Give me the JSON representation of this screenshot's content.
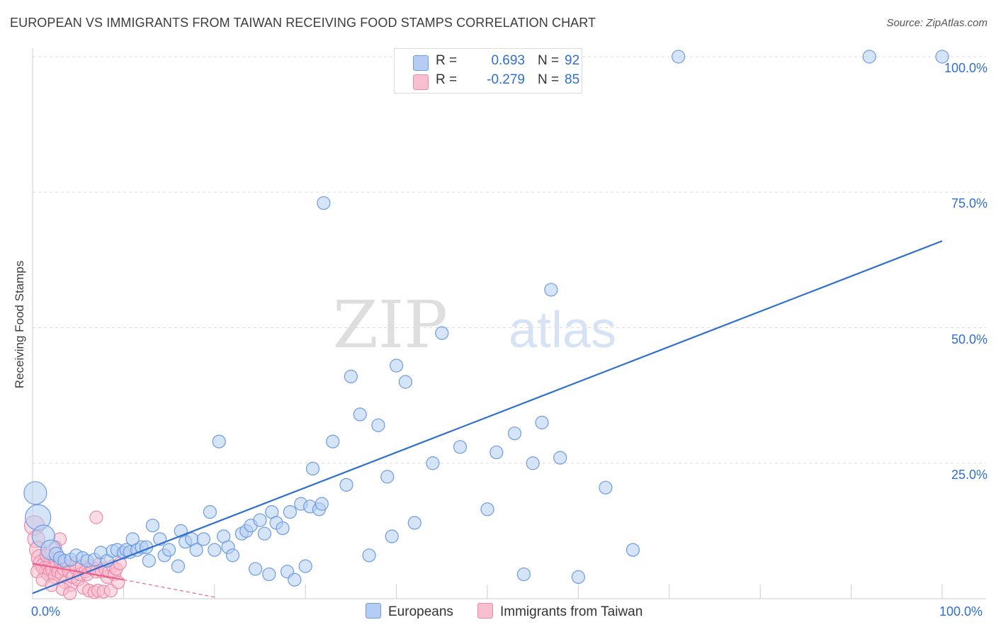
{
  "title": "EUROPEAN VS IMMIGRANTS FROM TAIWAN RECEIVING FOOD STAMPS CORRELATION CHART",
  "source": "Source: ZipAtlas.com",
  "watermark": {
    "zip": "ZIP",
    "atlas": "atlas"
  },
  "colors": {
    "blue": "#2f6fd0",
    "blue_fill": "#b5cdf2",
    "blue_stroke": "#6d9be2",
    "pink": "#e8608c",
    "pink_fill": "#f7bfd0",
    "pink_stroke": "#ec89a8",
    "grid": "#dddddd",
    "axis": "#cccccc"
  },
  "legend_top": [
    {
      "r_label": "R =",
      "r_value": "0.693",
      "n_label": "N =",
      "n_value": "92"
    },
    {
      "r_label": "R =",
      "r_value": "-0.279",
      "n_label": "N =",
      "n_value": "85"
    }
  ],
  "legend_bottom": [
    "Europeans",
    "Immigrants from Taiwan"
  ],
  "chart_data": {
    "type": "scatter",
    "title": "EUROPEAN VS IMMIGRANTS FROM TAIWAN RECEIVING FOOD STAMPS CORRELATION CHART",
    "xlabel": "",
    "ylabel": "Receiving Food Stamps",
    "xlim": [
      0,
      100
    ],
    "ylim": [
      0,
      100
    ],
    "x_tick_labels": [
      "0.0%",
      "100.0%"
    ],
    "y_tick_labels": [
      "25.0%",
      "50.0%",
      "75.0%",
      "100.0%"
    ],
    "y_tick_values": [
      25,
      50,
      75,
      100
    ],
    "series": [
      {
        "name": "Europeans",
        "r": 0.693,
        "n": 92,
        "trend": {
          "x": [
            0,
            100
          ],
          "y": [
            1.0,
            66.0
          ]
        },
        "points": [
          {
            "x": 0.3,
            "y": 19.5,
            "s": 16
          },
          {
            "x": 0.6,
            "y": 15.0,
            "s": 18
          },
          {
            "x": 1.2,
            "y": 11.5,
            "s": 16
          },
          {
            "x": 2.0,
            "y": 9.0,
            "s": 14
          },
          {
            "x": 2.6,
            "y": 8.2,
            "s": 10
          },
          {
            "x": 3.0,
            "y": 7.5,
            "s": 9
          },
          {
            "x": 3.5,
            "y": 7.0,
            "s": 9
          },
          {
            "x": 4.2,
            "y": 7.2,
            "s": 9
          },
          {
            "x": 4.8,
            "y": 8.0,
            "s": 9
          },
          {
            "x": 5.5,
            "y": 7.5,
            "s": 9
          },
          {
            "x": 6.0,
            "y": 7.0,
            "s": 9
          },
          {
            "x": 6.8,
            "y": 7.2,
            "s": 9
          },
          {
            "x": 7.5,
            "y": 8.5,
            "s": 9
          },
          {
            "x": 8.2,
            "y": 7.0,
            "s": 9
          },
          {
            "x": 8.8,
            "y": 8.8,
            "s": 9
          },
          {
            "x": 9.3,
            "y": 9.0,
            "s": 9
          },
          {
            "x": 10.0,
            "y": 8.5,
            "s": 9
          },
          {
            "x": 10.3,
            "y": 9.0,
            "s": 9
          },
          {
            "x": 10.7,
            "y": 8.6,
            "s": 9
          },
          {
            "x": 11.0,
            "y": 11.0,
            "s": 9
          },
          {
            "x": 11.5,
            "y": 9.0,
            "s": 9
          },
          {
            "x": 12.0,
            "y": 9.5,
            "s": 9
          },
          {
            "x": 12.5,
            "y": 9.5,
            "s": 9
          },
          {
            "x": 12.8,
            "y": 7.0,
            "s": 9
          },
          {
            "x": 13.2,
            "y": 13.5,
            "s": 9
          },
          {
            "x": 14.0,
            "y": 11.0,
            "s": 9
          },
          {
            "x": 14.5,
            "y": 8.0,
            "s": 9
          },
          {
            "x": 15.0,
            "y": 9.0,
            "s": 9
          },
          {
            "x": 16.0,
            "y": 6.0,
            "s": 9
          },
          {
            "x": 16.3,
            "y": 12.5,
            "s": 9
          },
          {
            "x": 16.8,
            "y": 10.5,
            "s": 9
          },
          {
            "x": 17.5,
            "y": 11.0,
            "s": 9
          },
          {
            "x": 18.0,
            "y": 9.0,
            "s": 9
          },
          {
            "x": 18.8,
            "y": 11.0,
            "s": 9
          },
          {
            "x": 19.5,
            "y": 16.0,
            "s": 9
          },
          {
            "x": 20.0,
            "y": 9.0,
            "s": 9
          },
          {
            "x": 20.5,
            "y": 29.0,
            "s": 9
          },
          {
            "x": 21.0,
            "y": 11.5,
            "s": 9
          },
          {
            "x": 21.5,
            "y": 9.5,
            "s": 9
          },
          {
            "x": 22.0,
            "y": 8.0,
            "s": 9
          },
          {
            "x": 23.0,
            "y": 12.0,
            "s": 9
          },
          {
            "x": 23.5,
            "y": 12.5,
            "s": 9
          },
          {
            "x": 24.0,
            "y": 13.5,
            "s": 9
          },
          {
            "x": 24.5,
            "y": 5.5,
            "s": 9
          },
          {
            "x": 25.0,
            "y": 14.5,
            "s": 9
          },
          {
            "x": 25.5,
            "y": 12.0,
            "s": 9
          },
          {
            "x": 26.0,
            "y": 4.5,
            "s": 9
          },
          {
            "x": 26.3,
            "y": 16.0,
            "s": 9
          },
          {
            "x": 26.8,
            "y": 14.0,
            "s": 9
          },
          {
            "x": 27.5,
            "y": 13.0,
            "s": 9
          },
          {
            "x": 28.0,
            "y": 5.0,
            "s": 9
          },
          {
            "x": 28.3,
            "y": 16.0,
            "s": 9
          },
          {
            "x": 28.8,
            "y": 3.5,
            "s": 9
          },
          {
            "x": 29.5,
            "y": 17.5,
            "s": 9
          },
          {
            "x": 30.0,
            "y": 6.0,
            "s": 9
          },
          {
            "x": 30.5,
            "y": 17.0,
            "s": 9
          },
          {
            "x": 30.8,
            "y": 24.0,
            "s": 9
          },
          {
            "x": 31.5,
            "y": 16.5,
            "s": 9
          },
          {
            "x": 31.8,
            "y": 17.5,
            "s": 9
          },
          {
            "x": 32.0,
            "y": 73.0,
            "s": 9
          },
          {
            "x": 33.0,
            "y": 29.0,
            "s": 9
          },
          {
            "x": 34.5,
            "y": 21.0,
            "s": 9
          },
          {
            "x": 35.0,
            "y": 41.0,
            "s": 9
          },
          {
            "x": 36.0,
            "y": 34.0,
            "s": 9
          },
          {
            "x": 37.0,
            "y": 8.0,
            "s": 9
          },
          {
            "x": 38.0,
            "y": 32.0,
            "s": 9
          },
          {
            "x": 39.0,
            "y": 22.5,
            "s": 9
          },
          {
            "x": 39.5,
            "y": 11.5,
            "s": 9
          },
          {
            "x": 40.0,
            "y": 43.0,
            "s": 9
          },
          {
            "x": 41.0,
            "y": 40.0,
            "s": 9
          },
          {
            "x": 42.0,
            "y": 14.0,
            "s": 9
          },
          {
            "x": 44.0,
            "y": 25.0,
            "s": 9
          },
          {
            "x": 45.0,
            "y": 49.0,
            "s": 9
          },
          {
            "x": 47.0,
            "y": 28.0,
            "s": 9
          },
          {
            "x": 50.0,
            "y": 16.5,
            "s": 9
          },
          {
            "x": 51.0,
            "y": 27.0,
            "s": 9
          },
          {
            "x": 53.0,
            "y": 30.5,
            "s": 9
          },
          {
            "x": 54.0,
            "y": 4.5,
            "s": 9
          },
          {
            "x": 55.0,
            "y": 25.0,
            "s": 9
          },
          {
            "x": 56.0,
            "y": 32.5,
            "s": 9
          },
          {
            "x": 57.0,
            "y": 57.0,
            "s": 9
          },
          {
            "x": 58.0,
            "y": 26.0,
            "s": 9
          },
          {
            "x": 60.0,
            "y": 4.0,
            "s": 9
          },
          {
            "x": 63.0,
            "y": 20.5,
            "s": 9
          },
          {
            "x": 66.0,
            "y": 9.0,
            "s": 9
          },
          {
            "x": 71.0,
            "y": 100.0,
            "s": 9
          },
          {
            "x": 92.0,
            "y": 100.0,
            "s": 9
          },
          {
            "x": 100.0,
            "y": 100.0,
            "s": 9
          }
        ]
      },
      {
        "name": "Immigrants from Taiwan",
        "r": -0.279,
        "n": 85,
        "trend": {
          "x": [
            0,
            10
          ],
          "y": [
            6.5,
            3.5
          ]
        },
        "trend_dashed": {
          "x": [
            10,
            20
          ],
          "y": [
            3.5,
            0.3
          ]
        },
        "points": [
          {
            "x": 0.2,
            "y": 13.5,
            "s": 14
          },
          {
            "x": 0.4,
            "y": 11.0,
            "s": 12
          },
          {
            "x": 0.6,
            "y": 9.0,
            "s": 12
          },
          {
            "x": 0.8,
            "y": 7.5,
            "s": 12
          },
          {
            "x": 1.0,
            "y": 6.5,
            "s": 12
          },
          {
            "x": 1.2,
            "y": 6.0,
            "s": 11
          },
          {
            "x": 1.4,
            "y": 5.5,
            "s": 11
          },
          {
            "x": 1.6,
            "y": 5.0,
            "s": 11
          },
          {
            "x": 1.8,
            "y": 4.5,
            "s": 10
          },
          {
            "x": 2.0,
            "y": 6.5,
            "s": 10
          },
          {
            "x": 2.2,
            "y": 5.5,
            "s": 10
          },
          {
            "x": 2.4,
            "y": 4.0,
            "s": 9
          },
          {
            "x": 2.6,
            "y": 6.0,
            "s": 9
          },
          {
            "x": 2.8,
            "y": 5.0,
            "s": 9
          },
          {
            "x": 3.0,
            "y": 7.0,
            "s": 9
          },
          {
            "x": 3.2,
            "y": 4.5,
            "s": 9
          },
          {
            "x": 3.4,
            "y": 5.5,
            "s": 9
          },
          {
            "x": 3.6,
            "y": 3.0,
            "s": 9
          },
          {
            "x": 3.8,
            "y": 6.0,
            "s": 9
          },
          {
            "x": 4.0,
            "y": 5.0,
            "s": 9
          },
          {
            "x": 4.2,
            "y": 2.5,
            "s": 9
          },
          {
            "x": 4.4,
            "y": 4.0,
            "s": 9
          },
          {
            "x": 4.6,
            "y": 6.5,
            "s": 9
          },
          {
            "x": 4.8,
            "y": 5.5,
            "s": 9
          },
          {
            "x": 5.0,
            "y": 3.5,
            "s": 9
          },
          {
            "x": 5.2,
            "y": 4.5,
            "s": 9
          },
          {
            "x": 5.4,
            "y": 6.0,
            "s": 9
          },
          {
            "x": 5.6,
            "y": 2.0,
            "s": 9
          },
          {
            "x": 5.8,
            "y": 5.0,
            "s": 9
          },
          {
            "x": 6.0,
            "y": 4.5,
            "s": 9
          },
          {
            "x": 6.2,
            "y": 1.5,
            "s": 9
          },
          {
            "x": 6.4,
            "y": 6.0,
            "s": 9
          },
          {
            "x": 6.6,
            "y": 5.5,
            "s": 9
          },
          {
            "x": 6.8,
            "y": 1.2,
            "s": 9
          },
          {
            "x": 7.0,
            "y": 5.0,
            "s": 9
          },
          {
            "x": 7.2,
            "y": 1.5,
            "s": 9
          },
          {
            "x": 7.4,
            "y": 6.5,
            "s": 9
          },
          {
            "x": 7.6,
            "y": 5.0,
            "s": 9
          },
          {
            "x": 7.8,
            "y": 1.3,
            "s": 9
          },
          {
            "x": 8.0,
            "y": 5.5,
            "s": 9
          },
          {
            "x": 8.2,
            "y": 4.0,
            "s": 9
          },
          {
            "x": 8.4,
            "y": 5.0,
            "s": 9
          },
          {
            "x": 8.6,
            "y": 1.5,
            "s": 9
          },
          {
            "x": 8.8,
            "y": 6.0,
            "s": 9
          },
          {
            "x": 9.0,
            "y": 4.5,
            "s": 9
          },
          {
            "x": 9.2,
            "y": 5.5,
            "s": 9
          },
          {
            "x": 9.4,
            "y": 3.0,
            "s": 9
          },
          {
            "x": 9.6,
            "y": 6.5,
            "s": 9
          },
          {
            "x": 7.0,
            "y": 15.0,
            "s": 9
          },
          {
            "x": 3.0,
            "y": 11.0,
            "s": 9
          },
          {
            "x": 2.5,
            "y": 9.5,
            "s": 9
          },
          {
            "x": 1.5,
            "y": 8.0,
            "s": 9
          },
          {
            "x": 0.5,
            "y": 5.0,
            "s": 9
          },
          {
            "x": 1.1,
            "y": 3.5,
            "s": 9
          },
          {
            "x": 2.1,
            "y": 2.5,
            "s": 9
          },
          {
            "x": 3.3,
            "y": 1.8,
            "s": 9
          },
          {
            "x": 4.1,
            "y": 1.0,
            "s": 9
          }
        ]
      }
    ]
  }
}
